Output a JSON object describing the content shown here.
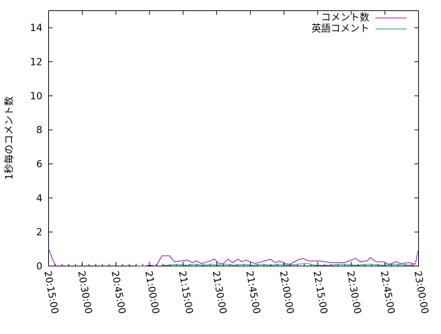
{
  "chart_data": {
    "type": "line",
    "title": "",
    "xlabel": "",
    "ylabel": "1秒毎のコメント数",
    "xlim": [
      "20:15:00",
      "23:00:00"
    ],
    "ylim": [
      0,
      15
    ],
    "yticks": [
      "0",
      "2",
      "4",
      "6",
      "8",
      "10",
      "12",
      "14"
    ],
    "xticks": [
      "20:15:00",
      "20:30:00",
      "20:45:00",
      "21:00:00",
      "21:15:00",
      "21:30:00",
      "21:45:00",
      "22:00:00",
      "22:15:00",
      "22:30:00",
      "22:45:00",
      "23:00:00"
    ],
    "grid": false,
    "legend": "top-right",
    "series": [
      {
        "name": "コメント数",
        "color": "#9400d3",
        "points": [
          [
            "20:15:00",
            1.0
          ],
          [
            "20:18:00",
            0
          ],
          [
            "20:18:00",
            null
          ],
          [
            "20:54:30",
            0
          ],
          [
            "20:58:00",
            0
          ],
          [
            "21:00:00",
            0.05
          ],
          [
            "21:03:00",
            0.0
          ],
          [
            "21:05:30",
            0.6
          ],
          [
            "21:09:00",
            0.6
          ],
          [
            "21:11:00",
            0.25
          ],
          [
            "21:14:00",
            0.3
          ],
          [
            "21:17:00",
            0.35
          ],
          [
            "21:19:00",
            0.2
          ],
          [
            "21:21:00",
            0.3
          ],
          [
            "21:23:00",
            0.15
          ],
          [
            "21:26:00",
            0.25
          ],
          [
            "21:29:00",
            0.4
          ],
          [
            "21:31:00",
            0.15
          ],
          [
            "21:33:00",
            0.15
          ],
          [
            "21:35:00",
            0.4
          ],
          [
            "21:37:00",
            0.2
          ],
          [
            "21:39:30",
            0.4
          ],
          [
            "21:41:00",
            0.25
          ],
          [
            "21:43:00",
            0.35
          ],
          [
            "21:47:00",
            0.15
          ],
          [
            "21:50:00",
            0.25
          ],
          [
            "21:54:00",
            0.4
          ],
          [
            "21:56:00",
            0.2
          ],
          [
            "21:58:00",
            0.3
          ],
          [
            "22:00:00",
            0.15
          ],
          [
            "22:02:30",
            0.1
          ],
          [
            "22:06:00",
            0.35
          ],
          [
            "22:08:30",
            0.45
          ],
          [
            "22:11:00",
            0.3
          ],
          [
            "22:16:00",
            0.3
          ],
          [
            "22:21:00",
            0.2
          ],
          [
            "22:27:00",
            0.2
          ],
          [
            "22:28:00",
            0.25
          ],
          [
            "22:32:00",
            0.45
          ],
          [
            "22:34:00",
            0.25
          ],
          [
            "22:37:00",
            0.3
          ],
          [
            "22:38:30",
            0.5
          ],
          [
            "22:41:00",
            0.25
          ],
          [
            "22:44:00",
            0.25
          ],
          [
            "22:47:00",
            0.1
          ],
          [
            "22:50:00",
            0.25
          ],
          [
            "22:52:00",
            0.15
          ],
          [
            "22:56:00",
            0.2
          ],
          [
            "22:58:30",
            0.1
          ],
          [
            "23:00:00",
            1.0
          ]
        ]
      },
      {
        "name": "英語コメント",
        "color": "#009e73",
        "points": [
          [
            "21:05:30",
            0.05
          ],
          [
            "21:09:00",
            0.05
          ],
          [
            "21:12:00",
            0.1
          ],
          [
            "21:16:00",
            0.05
          ],
          [
            "21:20:00",
            0.1
          ],
          [
            "21:24:00",
            0.05
          ],
          [
            "21:28:00",
            0.1
          ],
          [
            "21:30:00",
            0.05
          ],
          [
            "21:34:00",
            0.1
          ],
          [
            "21:38:00",
            0.05
          ],
          [
            "21:42:00",
            0.1
          ],
          [
            "21:46:00",
            0.05
          ],
          [
            "21:50:00",
            0.1
          ],
          [
            "21:54:00",
            0.05
          ],
          [
            "21:58:00",
            0.1
          ],
          [
            "22:02:00",
            0.05
          ],
          [
            "22:06:00",
            0.1
          ],
          [
            "22:10:00",
            0.15
          ],
          [
            "22:14:00",
            0.05
          ],
          [
            "22:20:00",
            0.05
          ],
          [
            "22:26:00",
            0.1
          ],
          [
            "22:32:00",
            0.05
          ],
          [
            "22:38:00",
            0.1
          ],
          [
            "22:44:00",
            0.05
          ],
          [
            "22:50:00",
            0.1
          ],
          [
            "22:56:00",
            0.05
          ],
          [
            "22:58:00",
            0.05
          ]
        ]
      }
    ]
  }
}
